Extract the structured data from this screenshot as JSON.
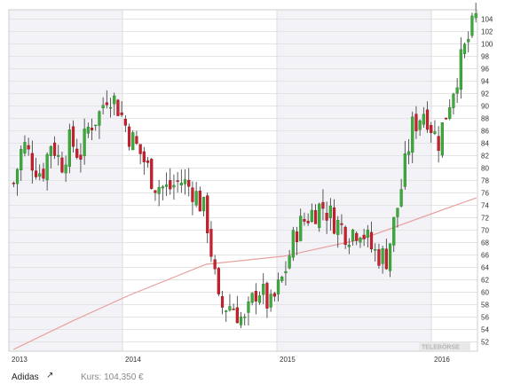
{
  "chart_data": {
    "type": "candlestick",
    "security": "Adidas",
    "x_ticks": [
      "2013",
      "2014",
      "2015",
      "2016"
    ],
    "y_ticks": [
      52,
      54,
      56,
      58,
      60,
      62,
      64,
      66,
      68,
      70,
      72,
      74,
      76,
      78,
      80,
      82,
      84,
      86,
      88,
      90,
      92,
      94,
      96,
      98,
      100,
      102,
      104
    ],
    "ylim": [
      50.5,
      105.5
    ],
    "grid": true,
    "shaded_years": [
      "2013",
      "2015"
    ],
    "price_path": [
      [
        "2013-01",
        77.5
      ],
      [
        "2013-02",
        84
      ],
      [
        "2013-03",
        81
      ],
      [
        "2013-04",
        79
      ],
      [
        "2013-05",
        84.5
      ],
      [
        "2013-06",
        80.5
      ],
      [
        "2013-07",
        84.5
      ],
      [
        "2013-08",
        82
      ],
      [
        "2013-09",
        87
      ],
      [
        "2013-10",
        88.5
      ],
      [
        "2013-11",
        92.5
      ],
      [
        "2013-12",
        90
      ],
      [
        "2014-01",
        85.5
      ],
      [
        "2014-02",
        82
      ],
      [
        "2014-03",
        77.5
      ],
      [
        "2014-04",
        76.5
      ],
      [
        "2014-05",
        78
      ],
      [
        "2014-06",
        76.5
      ],
      [
        "2014-07",
        72.5
      ],
      [
        "2014-08",
        57.5
      ],
      [
        "2014-09",
        58
      ],
      [
        "2014-10",
        55
      ],
      [
        "2014-11",
        61
      ],
      [
        "2014-12",
        57.5
      ],
      [
        "2015-01",
        62.5
      ],
      [
        "2015-02",
        70
      ],
      [
        "2015-03",
        72.5
      ],
      [
        "2015-04",
        74
      ],
      [
        "2015-05",
        71.5
      ],
      [
        "2015-06",
        69.5
      ],
      [
        "2015-07",
        70.5
      ],
      [
        "2015-08",
        66.5
      ],
      [
        "2015-09",
        65.5
      ],
      [
        "2015-10",
        75
      ],
      [
        "2015-11",
        86.5
      ],
      [
        "2015-12",
        89.5
      ],
      [
        "2016-01",
        84
      ],
      [
        "2016-02",
        91.5
      ],
      [
        "2016-03",
        98.5
      ],
      [
        "2016-04",
        104.35
      ]
    ],
    "moving_average": {
      "color": "#e8a0a0",
      "points": [
        [
          "2013-01",
          50.8
        ],
        [
          "2013-07",
          55.2
        ],
        [
          "2014-01",
          59.5
        ],
        [
          "2014-07",
          64.5
        ],
        [
          "2015-01",
          65.8
        ],
        [
          "2015-07",
          68.5
        ],
        [
          "2016-01",
          73.0
        ],
        [
          "2016-04",
          75.2
        ]
      ]
    },
    "colors": {
      "up": "#3cab3c",
      "down": "#c8202c",
      "grid": "#e4e4e4",
      "shade": "#f3f3f7",
      "axis_text": "#333333"
    },
    "watermark": "TELEBÖRSE"
  },
  "footer": {
    "name": "Adidas",
    "marker_icon": "small-arrow-icon",
    "marker_glyph": "↗",
    "price_label": "Kurs: 104,350 €"
  }
}
